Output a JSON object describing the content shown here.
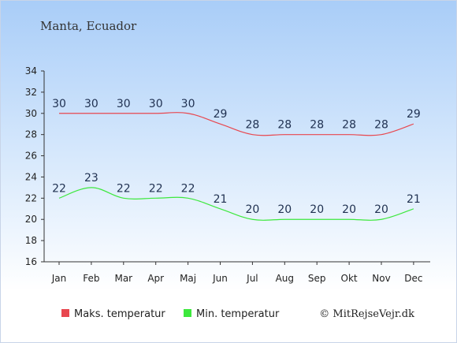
{
  "title": "Manta, Ecuador",
  "credit": "© MitRejseVejr.dk",
  "colors": {
    "max": "#e8474f",
    "min": "#3de83d",
    "axis": "#333333"
  },
  "chart_data": {
    "type": "line",
    "categories": [
      "Jan",
      "Feb",
      "Mar",
      "Apr",
      "Maj",
      "Jun",
      "Jul",
      "Aug",
      "Sep",
      "Okt",
      "Nov",
      "Dec"
    ],
    "series": [
      {
        "name": "Maks. temperatur",
        "values": [
          30,
          30,
          30,
          30,
          30,
          29,
          28,
          28,
          28,
          28,
          28,
          29
        ]
      },
      {
        "name": "Min. temperatur",
        "values": [
          22,
          23,
          22,
          22,
          22,
          21,
          20,
          20,
          20,
          20,
          20,
          21
        ]
      }
    ],
    "yticks": [
      16,
      18,
      20,
      22,
      24,
      26,
      28,
      30,
      32,
      34
    ],
    "ylim": [
      16,
      34
    ],
    "grid": false,
    "legend": "bottom"
  }
}
